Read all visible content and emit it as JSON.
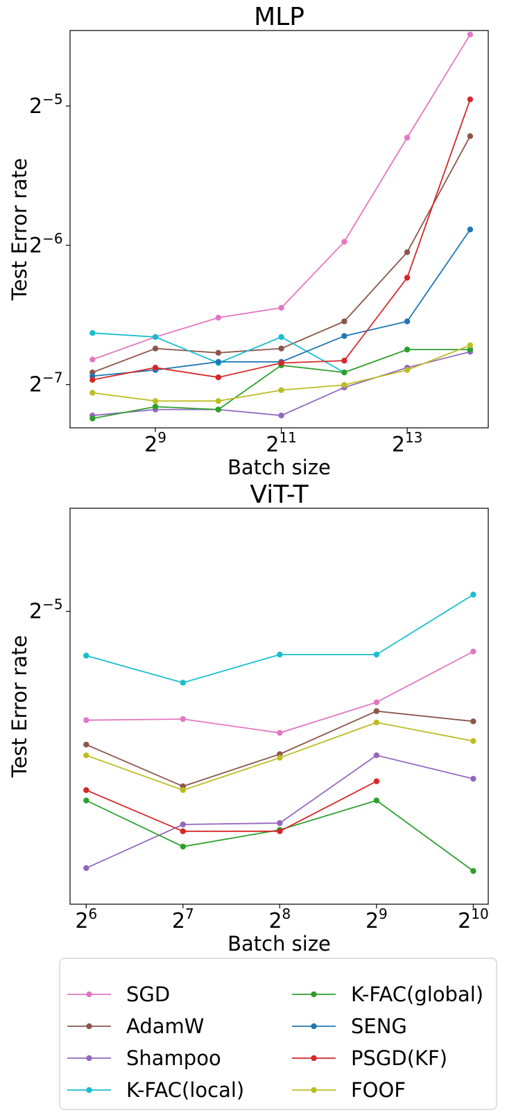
{
  "legend": {
    "placement": "bottom, below both panels, two columns",
    "entries": [
      {
        "label": "SGD",
        "color": "#e377c2"
      },
      {
        "label": "AdamW",
        "color": "#8c564b"
      },
      {
        "label": "Shampoo",
        "color": "#9467bd"
      },
      {
        "label": "K-FAC(local)",
        "color": "#17becf"
      },
      {
        "label": "K-FAC(global)",
        "color": "#2ca02c"
      },
      {
        "label": "SENG",
        "color": "#1f77b4"
      },
      {
        "label": "PSGD(KF)",
        "color": "#d62728"
      },
      {
        "label": "FOOF",
        "color": "#bcbd22"
      }
    ]
  },
  "chart_data": [
    {
      "type": "line",
      "title": "MLP",
      "xlabel": "Batch size",
      "ylabel": "Test Error rate",
      "xscale": "log2",
      "yscale": "log2",
      "xlim": [
        200,
        20000
      ],
      "ylim": [
        0.0063,
        0.0455
      ],
      "grid": false,
      "x": [
        256,
        512,
        1024,
        2048,
        4096,
        8192,
        16384
      ],
      "xticks": [
        {
          "value": 512,
          "base": "2",
          "exp": "9"
        },
        {
          "value": 2048,
          "base": "2",
          "exp": "11"
        },
        {
          "value": 8192,
          "base": "2",
          "exp": "13"
        }
      ],
      "yticks": [
        {
          "value": 0.03125,
          "base": "2",
          "exp": "−5"
        },
        {
          "value": 0.015625,
          "base": "2",
          "exp": "−6"
        },
        {
          "value": 0.0078125,
          "base": "2",
          "exp": "−7"
        }
      ],
      "series": [
        {
          "name": "SGD",
          "color": "#e377c2",
          "values": [
            0.00885,
            0.0099,
            0.0109,
            0.01145,
            0.0159,
            0.0267,
            0.0446
          ]
        },
        {
          "name": "AdamW",
          "color": "#8c564b",
          "values": [
            0.0083,
            0.00935,
            0.00915,
            0.00935,
            0.0107,
            0.0151,
            0.0269
          ]
        },
        {
          "name": "Shampoo",
          "color": "#9467bd",
          "values": [
            0.0067,
            0.0069,
            0.0069,
            0.0067,
            0.0077,
            0.0085,
            0.0092
          ]
        },
        {
          "name": "K-FAC(local)",
          "color": "#17becf",
          "values": [
            0.0101,
            0.0099,
            0.0087,
            0.0099,
            0.0083,
            null,
            null
          ]
        },
        {
          "name": "K-FAC(global)",
          "color": "#2ca02c",
          "values": [
            0.0066,
            0.007,
            0.0069,
            0.0086,
            0.0083,
            0.0093,
            0.0093
          ]
        },
        {
          "name": "SENG",
          "color": "#1f77b4",
          "values": [
            0.00815,
            0.0084,
            0.00875,
            0.00875,
            0.00995,
            0.0107,
            0.0169
          ]
        },
        {
          "name": "PSGD(KF)",
          "color": "#d62728",
          "values": [
            0.008,
            0.0085,
            0.0081,
            0.0087,
            0.0088,
            0.0133,
            0.0323
          ]
        },
        {
          "name": "FOOF",
          "color": "#bcbd22",
          "values": [
            0.0075,
            0.0072,
            0.0072,
            0.0076,
            0.0078,
            0.0084,
            0.0095
          ]
        }
      ]
    },
    {
      "type": "line",
      "title": "ViT-T",
      "xlabel": "Batch size",
      "ylabel": "Test Error rate",
      "xscale": "log2",
      "yscale": "log2",
      "xlim": [
        57,
        1140
      ],
      "ylim": [
        0.01905,
        0.0372
      ],
      "grid": false,
      "x": [
        64,
        128,
        256,
        512,
        1024
      ],
      "xticks": [
        {
          "value": 64,
          "base": "2",
          "exp": "6"
        },
        {
          "value": 128,
          "base": "2",
          "exp": "7"
        },
        {
          "value": 256,
          "base": "2",
          "exp": "8"
        },
        {
          "value": 512,
          "base": "2",
          "exp": "9"
        },
        {
          "value": 1024,
          "base": "2",
          "exp": "10"
        }
      ],
      "yticks": [
        {
          "value": 0.03125,
          "base": "2",
          "exp": "−5"
        }
      ],
      "series": [
        {
          "name": "SGD",
          "color": "#e377c2",
          "values": [
            0.026,
            0.02605,
            0.02545,
            0.0268,
            0.0292
          ]
        },
        {
          "name": "AdamW",
          "color": "#8c564b",
          "values": [
            0.02495,
            0.02325,
            0.02455,
            0.0264,
            0.02595
          ]
        },
        {
          "name": "Shampoo",
          "color": "#9467bd",
          "values": [
            0.02025,
            0.0218,
            0.02185,
            0.0245,
            0.02355
          ]
        },
        {
          "name": "K-FAC(local)",
          "color": "#17becf",
          "values": [
            0.029,
            0.0277,
            0.02905,
            0.02905,
            0.03215
          ]
        },
        {
          "name": "K-FAC(global)",
          "color": "#2ca02c",
          "values": [
            0.0227,
            0.021,
            0.0216,
            0.0227,
            0.02015
          ]
        },
        {
          "name": "PSGD(KF)",
          "color": "#d62728",
          "values": [
            0.0231,
            0.02155,
            0.02155,
            0.02345,
            null
          ]
        },
        {
          "name": "FOOF",
          "color": "#bcbd22",
          "values": [
            0.0245,
            0.0231,
            0.0244,
            0.0259,
            0.0251
          ]
        }
      ]
    }
  ]
}
